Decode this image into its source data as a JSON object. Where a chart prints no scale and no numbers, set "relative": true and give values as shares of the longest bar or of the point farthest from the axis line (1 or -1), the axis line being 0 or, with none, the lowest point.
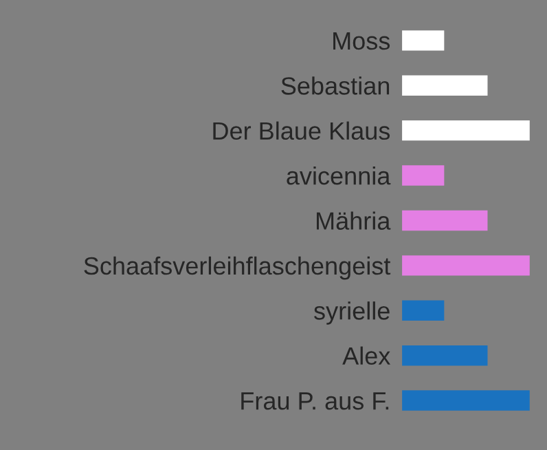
{
  "chart_data": {
    "type": "bar",
    "orientation": "horizontal",
    "relative": true,
    "categories": [
      "Moss",
      "Sebastian",
      "Der Blaue Klaus",
      "avicennia",
      "Mähria",
      "Schaafsverleihflaschengeist",
      "syrielle",
      "Alex",
      "Frau P. aus F."
    ],
    "values": [
      0.33,
      0.67,
      1,
      0.33,
      0.67,
      1,
      0.33,
      0.67,
      1
    ],
    "colors": [
      "#ffffff",
      "#ffffff",
      "#ffffff",
      "#e47fe4",
      "#e47fe4",
      "#e47fe4",
      "#1a72bf",
      "#1a72bf",
      "#1a72bf"
    ],
    "grid": false,
    "legend": false
  }
}
